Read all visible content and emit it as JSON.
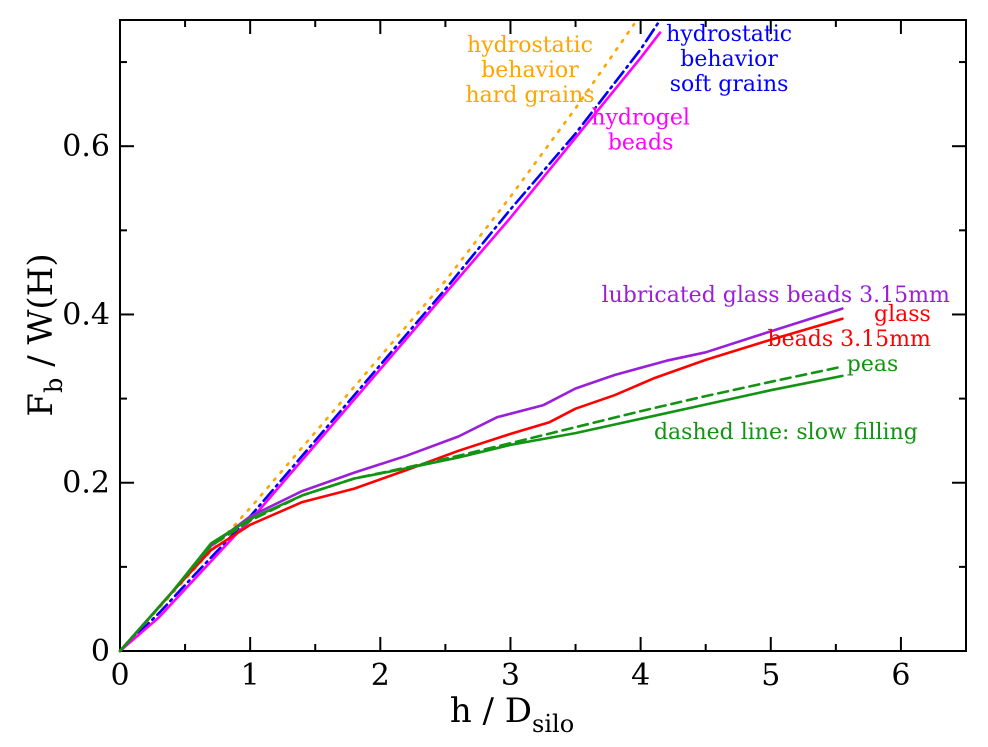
{
  "chart_data": {
    "type": "line",
    "title": "",
    "xlabel": {
      "main": "h / D",
      "sub": "silo"
    },
    "ylabel": {
      "main": "F",
      "sub": "b",
      "rest": " / W(H)"
    },
    "xlim": [
      0,
      6.5
    ],
    "ylim": [
      0,
      0.75
    ],
    "xticks": [
      0,
      1,
      2,
      3,
      4,
      5,
      6
    ],
    "yticks": [
      0,
      0.2,
      0.4,
      0.6
    ],
    "xtick_labels": [
      "0",
      "1",
      "2",
      "3",
      "4",
      "5",
      "6"
    ],
    "ytick_labels": [
      "0",
      "0.2",
      "0.4",
      "0.6"
    ],
    "series": [
      {
        "key": "hydrostatic-hard",
        "color": "#ffa500",
        "style": "dotted",
        "x": [
          0,
          0.5,
          1.0,
          1.5,
          2.0,
          2.5,
          3.0,
          3.5,
          3.95
        ],
        "y": [
          0,
          0.085,
          0.17,
          0.26,
          0.35,
          0.44,
          0.54,
          0.645,
          0.745
        ]
      },
      {
        "key": "hydrostatic-soft",
        "color": "#0000ff",
        "style": "dashdot",
        "x": [
          0,
          0.3,
          0.6,
          1.0,
          1.5,
          2.0,
          2.5,
          3.0,
          3.5,
          4.0,
          4.15
        ],
        "y": [
          0,
          0.045,
          0.095,
          0.16,
          0.25,
          0.34,
          0.43,
          0.525,
          0.615,
          0.715,
          0.75
        ]
      },
      {
        "key": "hydrogel",
        "color": "#ff00ff",
        "style": "solid",
        "x": [
          0,
          0.3,
          0.6,
          0.9,
          1.0,
          1.5,
          2.0,
          2.5,
          3.0,
          3.5,
          4.0,
          4.15
        ],
        "y": [
          0,
          0.04,
          0.09,
          0.14,
          0.155,
          0.245,
          0.335,
          0.425,
          0.515,
          0.61,
          0.705,
          0.735
        ]
      },
      {
        "key": "lubricated-glass",
        "color": "#9a1fd8",
        "style": "solid",
        "x": [
          0,
          0.4,
          0.7,
          1.0,
          1.4,
          1.8,
          2.2,
          2.6,
          2.9,
          3.25,
          3.5,
          3.8,
          4.2,
          4.5,
          4.9,
          5.55
        ],
        "y": [
          0,
          0.07,
          0.125,
          0.16,
          0.19,
          0.212,
          0.232,
          0.255,
          0.278,
          0.292,
          0.312,
          0.328,
          0.345,
          0.355,
          0.375,
          0.407
        ]
      },
      {
        "key": "glass",
        "color": "#ff0000",
        "style": "solid",
        "x": [
          0,
          0.4,
          0.7,
          1.0,
          1.4,
          1.8,
          2.2,
          2.6,
          3.0,
          3.3,
          3.5,
          3.8,
          4.1,
          4.5,
          5.0,
          5.55
        ],
        "y": [
          0,
          0.07,
          0.12,
          0.15,
          0.177,
          0.193,
          0.215,
          0.238,
          0.258,
          0.272,
          0.288,
          0.304,
          0.324,
          0.346,
          0.37,
          0.395
        ]
      },
      {
        "key": "peas-slow",
        "color": "#139313",
        "style": "dashed",
        "x": [
          0,
          0.4,
          0.7,
          1.0,
          1.4,
          1.8,
          2.2,
          2.6,
          3.0,
          3.5,
          4.0,
          4.5,
          5.0,
          5.55
        ],
        "y": [
          0,
          0.07,
          0.125,
          0.155,
          0.185,
          0.205,
          0.218,
          0.232,
          0.247,
          0.266,
          0.285,
          0.303,
          0.32,
          0.338
        ]
      },
      {
        "key": "peas",
        "color": "#139313",
        "style": "solid",
        "x": [
          0,
          0.4,
          0.7,
          1.0,
          1.4,
          1.8,
          2.2,
          2.6,
          3.0,
          3.5,
          4.0,
          4.5,
          5.0,
          5.55
        ],
        "y": [
          0,
          0.07,
          0.128,
          0.157,
          0.185,
          0.205,
          0.217,
          0.23,
          0.245,
          0.259,
          0.276,
          0.293,
          0.31,
          0.327
        ]
      }
    ],
    "annotations": [
      {
        "key": "hard",
        "lines": [
          "hydrostatic",
          "behavior",
          "hard grains"
        ],
        "color": "#ffa500",
        "anchor": "middle",
        "at": [
          3.15,
          0.712
        ]
      },
      {
        "key": "soft",
        "lines": [
          "hydrostatic",
          "behavior",
          "soft grains"
        ],
        "color": "#0000ff",
        "anchor": "middle",
        "at": [
          4.68,
          0.725
        ]
      },
      {
        "key": "hydrogel",
        "lines": [
          "hydrogel",
          "beads"
        ],
        "color": "#ff00ff",
        "anchor": "middle",
        "at": [
          4.0,
          0.626
        ]
      },
      {
        "key": "lubricated",
        "lines": [
          "lubricated glass beads 3.15mm"
        ],
        "color": "#9a1fd8",
        "anchor": "start",
        "at": [
          3.7,
          0.415
        ]
      },
      {
        "key": "glass",
        "lines": [
          "glass",
          "beads 3.15mm"
        ],
        "color": "#ff0000",
        "anchor": "end",
        "at": [
          6.23,
          0.392
        ]
      },
      {
        "key": "peas",
        "lines": [
          "peas"
        ],
        "color": "#139313",
        "anchor": "end",
        "at": [
          5.98,
          0.333
        ]
      },
      {
        "key": "dashed",
        "lines": [
          "dashed line: slow filling"
        ],
        "color": "#139313",
        "anchor": "end",
        "at": [
          6.13,
          0.252
        ]
      }
    ]
  }
}
